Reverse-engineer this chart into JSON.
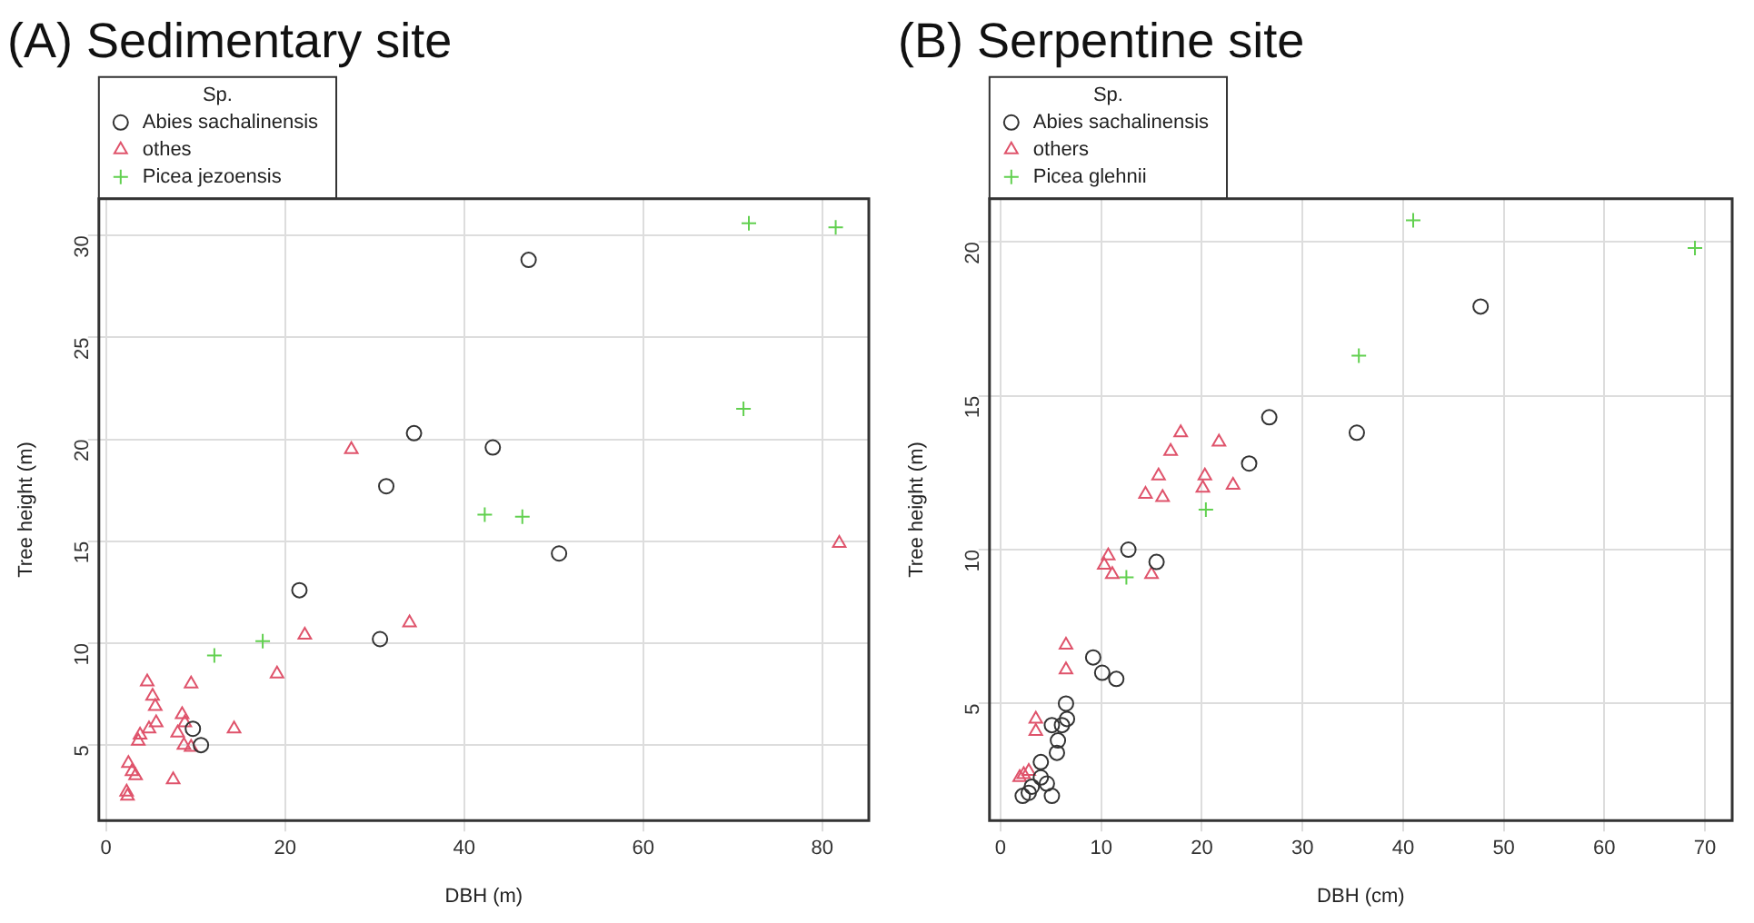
{
  "chart_data": [
    {
      "type": "scatter",
      "title": "(A) Sedimentary site",
      "xlabel": "DBH (m)",
      "ylabel": "Tree height (m)",
      "legend_title": "Sp.",
      "legend": "top left",
      "grid": true,
      "xlim": [
        -0.8,
        85.2
      ],
      "ylim": [
        1.3,
        31.8
      ],
      "xticks": [
        0,
        20,
        40,
        60,
        80
      ],
      "yticks": [
        5,
        10,
        15,
        20,
        25,
        30
      ],
      "series": [
        {
          "name": "Abies sachalinensis",
          "color": "#333333",
          "marker": "circle",
          "x": [
            47.2,
            34.4,
            43.2,
            31.3,
            50.6,
            21.6,
            30.6,
            10.6,
            9.7
          ],
          "values": [
            28.8,
            20.3,
            19.6,
            17.7,
            14.4,
            12.6,
            10.2,
            5.0,
            5.8
          ]
        },
        {
          "name": "othes",
          "color": "#df536b",
          "marker": "triangle",
          "x": [
            27.4,
            81.9,
            33.9,
            22.2,
            19.1,
            14.3,
            9.5,
            4.6,
            5.2,
            5.5,
            5.6,
            4.8,
            3.8,
            3.6,
            8.5,
            8.8,
            8.0,
            8.7,
            9.5,
            7.5,
            2.5,
            2.9,
            3.3,
            2.3,
            2.4
          ],
          "values": [
            19.5,
            14.9,
            11.0,
            10.4,
            8.5,
            5.8,
            8.0,
            8.1,
            7.4,
            6.9,
            6.1,
            5.8,
            5.5,
            5.2,
            6.5,
            6.1,
            5.6,
            5.0,
            4.9,
            3.3,
            4.1,
            3.7,
            3.5,
            2.7,
            2.5
          ]
        },
        {
          "name": "Picea jezoensis",
          "color": "#61d04f",
          "marker": "cross",
          "x": [
            71.8,
            81.5,
            71.2,
            42.3,
            46.5,
            17.5,
            12.1
          ],
          "values": [
            30.6,
            30.4,
            21.5,
            16.3,
            16.2,
            10.1,
            9.4
          ]
        }
      ]
    },
    {
      "type": "scatter",
      "title": "(B) Serpentine site",
      "xlabel": "DBH (cm)",
      "ylabel": "Tree height (m)",
      "legend_title": "Sp.",
      "legend": "top left",
      "grid": true,
      "xlim": [
        -1.1,
        72.7
      ],
      "ylim": [
        1.2,
        21.4
      ],
      "xticks": [
        0,
        10,
        20,
        30,
        40,
        50,
        60,
        70
      ],
      "yticks": [
        5,
        10,
        15,
        20
      ],
      "series": [
        {
          "name": "Abies sachalinensis",
          "color": "#333333",
          "marker": "circle",
          "x": [
            47.7,
            35.4,
            26.7,
            24.7,
            12.7,
            15.5,
            9.2,
            10.1,
            11.5,
            6.5,
            6.6,
            6.1,
            5.1,
            5.7,
            5.6,
            4.0,
            4.0,
            4.6,
            3.1,
            5.1,
            2.8,
            2.2
          ],
          "values": [
            17.9,
            13.8,
            14.3,
            12.8,
            10.0,
            9.6,
            6.5,
            6.0,
            5.8,
            5.0,
            4.5,
            4.3,
            4.3,
            3.8,
            3.4,
            3.1,
            2.6,
            2.4,
            2.3,
            2.0,
            2.1,
            2.0
          ]
        },
        {
          "name": "others",
          "color": "#df536b",
          "marker": "triangle",
          "x": [
            17.9,
            16.9,
            21.7,
            15.7,
            20.3,
            14.4,
            16.1,
            20.1,
            23.1,
            10.7,
            10.3,
            11.1,
            15.0,
            6.5,
            6.5,
            3.5,
            3.5,
            2.8,
            1.9,
            2.3
          ],
          "values": [
            13.8,
            13.2,
            13.5,
            12.4,
            12.4,
            11.8,
            11.7,
            12.0,
            12.1,
            9.8,
            9.5,
            9.2,
            9.2,
            6.9,
            6.1,
            4.5,
            4.1,
            2.8,
            2.6,
            2.7
          ]
        },
        {
          "name": "Picea glehnii",
          "color": "#61d04f",
          "marker": "cross",
          "x": [
            41.0,
            69.0,
            35.6,
            20.4,
            12.5
          ],
          "values": [
            20.7,
            19.8,
            16.3,
            11.3,
            9.1
          ]
        }
      ]
    }
  ]
}
